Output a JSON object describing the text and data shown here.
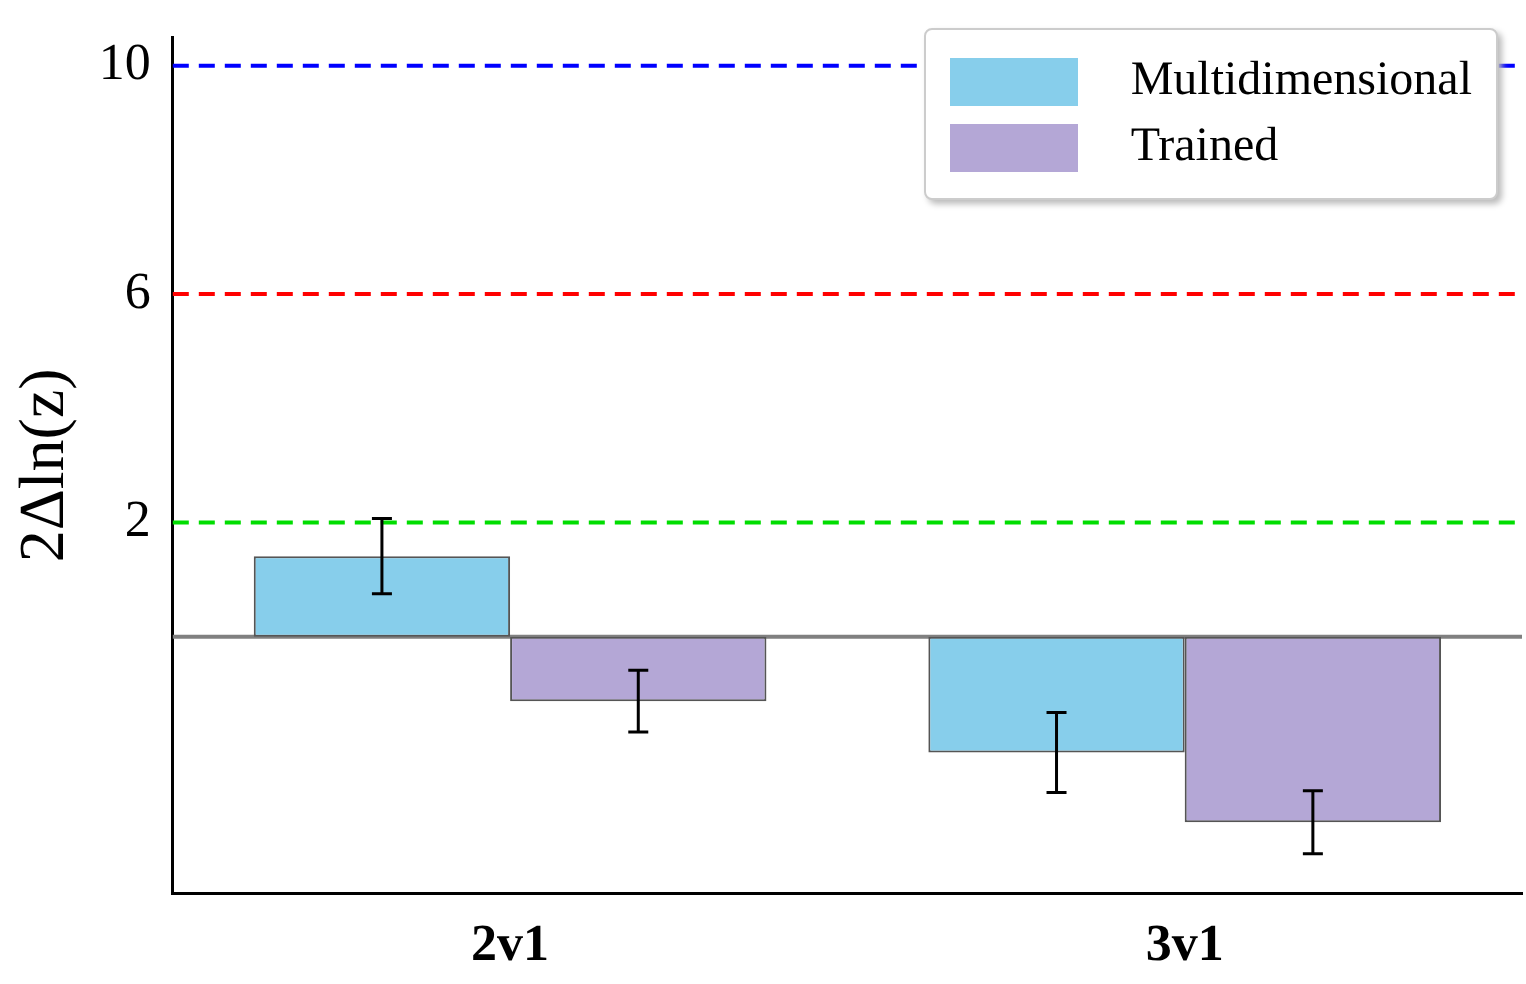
{
  "chart_data": {
    "type": "bar",
    "ylabel": "2Δln(z)",
    "categories": [
      "2v1",
      "3v1"
    ],
    "series": [
      {
        "name": "Multidimensional",
        "color": "#87ceeb",
        "values": [
          1.41,
          -2.03
        ],
        "errors": [
          0.66,
          0.7
        ]
      },
      {
        "name": "Trained",
        "color": "#b4a7d6",
        "values": [
          -1.13,
          -3.25
        ],
        "errors": [
          0.54,
          0.55
        ]
      }
    ],
    "ylim": [
      -4.5,
      10.5
    ],
    "yticks": [
      2,
      6,
      10
    ],
    "ref_lines": [
      {
        "axis": "y",
        "value": 10,
        "color": "#0000ff",
        "line_style": "dashed"
      },
      {
        "axis": "y",
        "value": 6,
        "color": "#ff0000",
        "line_style": "dashed"
      },
      {
        "axis": "y",
        "value": 2,
        "color": "#00dd00",
        "line_style": "dashed"
      },
      {
        "axis": "y",
        "value": 0,
        "color": "#808080",
        "line_style": "solid"
      }
    ],
    "legend": "top right",
    "grid": false
  }
}
